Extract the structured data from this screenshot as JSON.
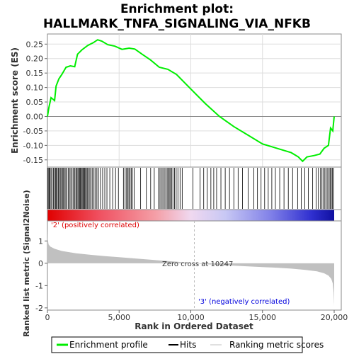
{
  "title_line1": "Enrichment plot:",
  "title_line2": "HALLMARK_TNFA_SIGNALING_VIA_NFKB",
  "chart_data": [
    {
      "type": "line",
      "panel": "enrichment profile",
      "ylabel": "Enrichment score (ES)",
      "xlim": [
        0,
        20000
      ],
      "ylim": [
        -0.175,
        0.285
      ],
      "yticks": [
        -0.15,
        -0.1,
        -0.05,
        0.0,
        0.05,
        0.1,
        0.15,
        0.2,
        0.25
      ],
      "ytick_labels": [
        "-0.15",
        "-0.10",
        "-0.05",
        "0.00",
        "0.05",
        "0.10",
        "0.15",
        "0.20",
        "0.25"
      ],
      "grid": true,
      "series": [
        {
          "name": "Enrichment profile",
          "color": "#00ee00",
          "x": [
            0,
            100,
            250,
            500,
            600,
            800,
            1000,
            1300,
            1600,
            1900,
            2100,
            2400,
            2800,
            3200,
            3500,
            3800,
            4200,
            4700,
            5200,
            5700,
            6100,
            6600,
            7200,
            7800,
            8400,
            9000,
            10000,
            11000,
            12000,
            13000,
            14000,
            15000,
            16000,
            17000,
            17500,
            17800,
            18100,
            18600,
            19000,
            19300,
            19600,
            19750,
            19900,
            20000
          ],
          "y": [
            0.0,
            0.03,
            0.065,
            0.055,
            0.105,
            0.13,
            0.145,
            0.17,
            0.175,
            0.172,
            0.215,
            0.23,
            0.245,
            0.255,
            0.265,
            0.26,
            0.248,
            0.243,
            0.232,
            0.236,
            0.233,
            0.215,
            0.195,
            0.17,
            0.163,
            0.145,
            0.095,
            0.045,
            0.0,
            -0.035,
            -0.065,
            -0.095,
            -0.11,
            -0.125,
            -0.14,
            -0.155,
            -0.14,
            -0.135,
            -0.13,
            -0.11,
            -0.1,
            -0.04,
            -0.05,
            0.0
          ]
        }
      ]
    },
    {
      "type": "hits",
      "panel": "hits",
      "series": [
        {
          "name": "Hits",
          "color": "#000000",
          "x": [
            10,
            60,
            120,
            180,
            250,
            330,
            420,
            500,
            560,
            620,
            690,
            760,
            830,
            900,
            980,
            1050,
            1120,
            1200,
            1280,
            1360,
            1450,
            1540,
            1630,
            1720,
            1810,
            1900,
            1980,
            2050,
            2120,
            2180,
            2240,
            2300,
            2360,
            2420,
            2480,
            2540,
            2600,
            2660,
            2720,
            2800,
            2880,
            2960,
            3050,
            3150,
            3250,
            3350,
            3450,
            3560,
            3700,
            3850,
            4000,
            4150,
            4350,
            4550,
            4750,
            4950,
            5300,
            5420,
            5520,
            5600,
            5680,
            5760,
            5840,
            5920,
            6050,
            6500,
            6900,
            7200,
            7450,
            7750,
            7850,
            7950,
            8050,
            8150,
            8250,
            8350,
            8420,
            8500,
            8580,
            8660,
            8750,
            8860,
            8980,
            9100,
            9250,
            9400,
            10150,
            10650,
            10900,
            11150,
            11400,
            11600,
            11800,
            12100,
            12400,
            12700,
            13000,
            13300,
            13600,
            14000,
            14400,
            14650,
            14900,
            15150,
            15400,
            15650,
            15900,
            16200,
            16500,
            16800,
            17100,
            17450,
            17700,
            17950,
            18200,
            18500,
            18750,
            18900,
            19050,
            19150,
            19250,
            19350,
            19450,
            19550,
            19650,
            19720,
            19800,
            19870,
            19950
          ]
        }
      ]
    },
    {
      "type": "area",
      "panel": "ranked list metric",
      "xlabel": "Rank in Ordered Dataset",
      "ylabel": "Ranked list metric (Signal2Noise)",
      "xlim": [
        0,
        20000
      ],
      "ylim": [
        -2.1,
        1.9
      ],
      "xticks": [
        0,
        5000,
        10000,
        15000,
        20000
      ],
      "xtick_labels": [
        "0",
        "5,000",
        "10,000",
        "15,000",
        "20,000"
      ],
      "yticks": [
        -2,
        -1,
        0,
        1
      ],
      "ytick_labels": [
        "-2",
        "-1",
        "0",
        "1"
      ],
      "series": [
        {
          "name": "Ranking metric scores",
          "color": "#c0c0c0",
          "x": [
            0,
            20,
            80,
            200,
            500,
            1000,
            2000,
            3000,
            4000,
            5000,
            6000,
            7000,
            8000,
            9000,
            10247,
            11000,
            12000,
            13000,
            14000,
            15000,
            16000,
            17000,
            18000,
            18800,
            19300,
            19600,
            19800,
            19900,
            19960,
            20000
          ],
          "y": [
            1.6,
            1.1,
            0.85,
            0.75,
            0.65,
            0.55,
            0.45,
            0.38,
            0.32,
            0.27,
            0.22,
            0.17,
            0.12,
            0.07,
            0.0,
            -0.04,
            -0.08,
            -0.11,
            -0.14,
            -0.17,
            -0.2,
            -0.24,
            -0.3,
            -0.36,
            -0.45,
            -0.55,
            -0.7,
            -0.9,
            -1.3,
            -1.9
          ]
        }
      ]
    }
  ],
  "labels": {
    "pos_corr": "'2' (positively correlated)",
    "neg_corr": "'3' (negatively correlated)",
    "zero_cross": "Zero cross at 10247"
  },
  "colors": {
    "es_line": "#00ee00",
    "pos_label": "#dd0000",
    "neg_label": "#0000dd",
    "grid": "#dddddd",
    "metric_fill": "#c0c0c0"
  },
  "legend": [
    {
      "label": "Enrichment profile",
      "color": "#00ee00"
    },
    {
      "label": "Hits",
      "color": "#000000"
    },
    {
      "label": "Ranking metric scores",
      "color": "#c0c0c0"
    }
  ]
}
